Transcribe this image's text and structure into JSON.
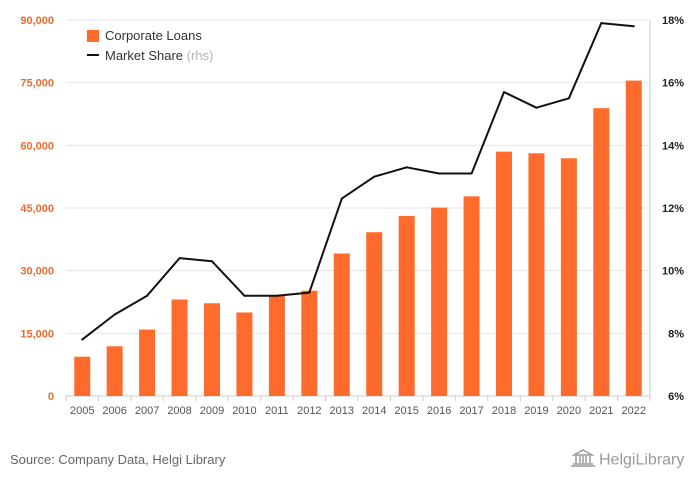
{
  "chart_data": {
    "type": "bar",
    "categories": [
      "2005",
      "2006",
      "2007",
      "2008",
      "2009",
      "2010",
      "2011",
      "2012",
      "2013",
      "2014",
      "2015",
      "2016",
      "2017",
      "2018",
      "2019",
      "2020",
      "2021",
      "2022"
    ],
    "series": [
      {
        "name": "Corporate Loans",
        "type": "bar",
        "axis": "left",
        "color": "#ff6b2c",
        "values": [
          9400,
          11900,
          15900,
          23100,
          22200,
          20000,
          24100,
          25200,
          34100,
          39200,
          43100,
          45100,
          47800,
          58500,
          58100,
          56900,
          68900,
          75500
        ]
      },
      {
        "name": "Market Share",
        "name_suffix": "(rhs)",
        "type": "line",
        "axis": "right",
        "color": "#111111",
        "values": [
          7.8,
          8.6,
          9.2,
          10.4,
          10.3,
          9.2,
          9.2,
          9.3,
          12.3,
          13.0,
          13.3,
          13.1,
          13.1,
          15.7,
          15.2,
          15.5,
          17.9,
          17.8
        ]
      }
    ],
    "ylim": [
      0,
      90000
    ],
    "y_ticks": [
      "0",
      "15,000",
      "30,000",
      "45,000",
      "60,000",
      "75,000",
      "90,000"
    ],
    "y_tick_values": [
      0,
      15000,
      30000,
      45000,
      60000,
      75000,
      90000
    ],
    "y2lim": [
      6,
      18
    ],
    "y2_ticks": [
      "6%",
      "8%",
      "10%",
      "12%",
      "14%",
      "16%",
      "18%"
    ],
    "y2_tick_values": [
      6,
      8,
      10,
      12,
      14,
      16,
      18
    ],
    "grid": true,
    "legend_position": "top-left"
  },
  "footer": {
    "source": "Source: Company Data, Helgi Library",
    "logo_text": "HelgiLibrary"
  }
}
